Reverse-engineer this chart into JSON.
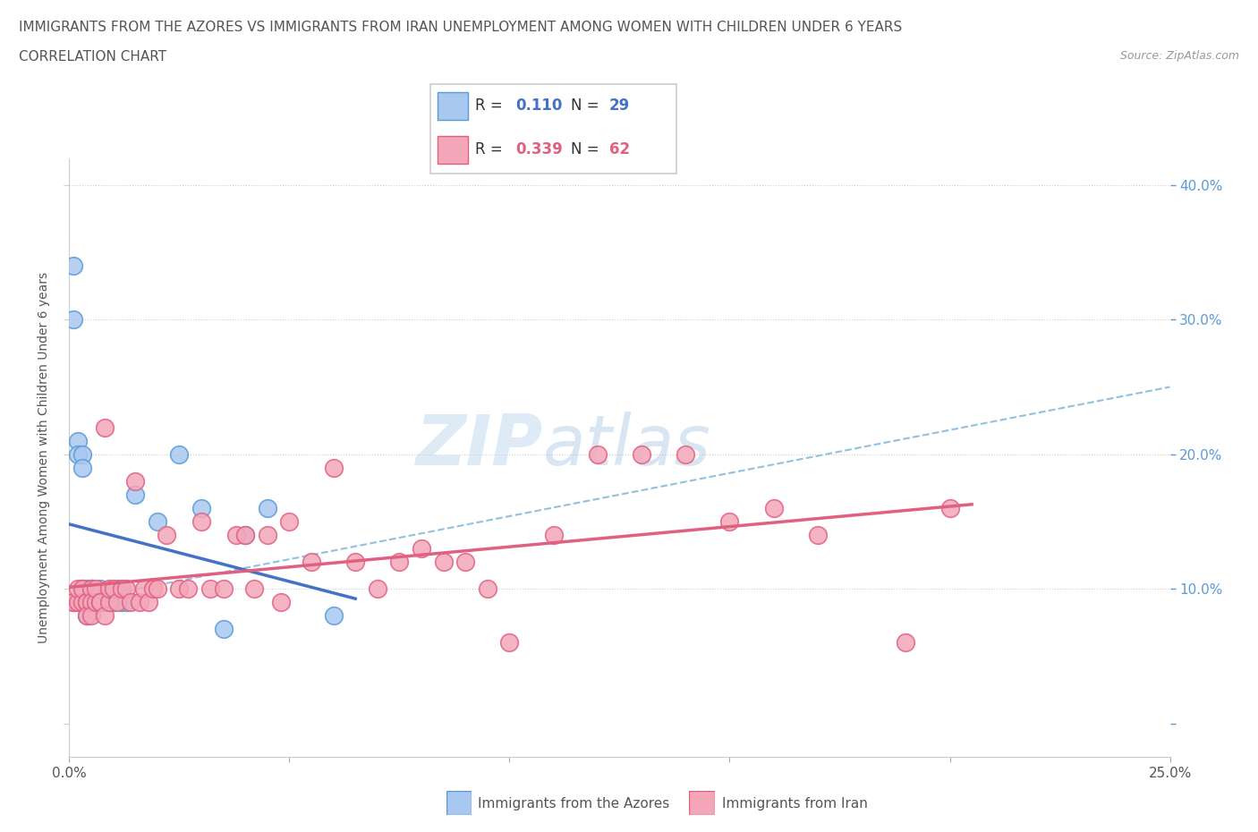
{
  "title_line1": "IMMIGRANTS FROM THE AZORES VS IMMIGRANTS FROM IRAN UNEMPLOYMENT AMONG WOMEN WITH CHILDREN UNDER 6 YEARS",
  "title_line2": "CORRELATION CHART",
  "source_text": "Source: ZipAtlas.com",
  "ylabel": "Unemployment Among Women with Children Under 6 years",
  "watermark_1": "ZIP",
  "watermark_2": "atlas",
  "xlim": [
    0.0,
    0.25
  ],
  "ylim": [
    -0.025,
    0.42
  ],
  "azores_color": "#a8c8f0",
  "azores_edge_color": "#5b9bd5",
  "iran_color": "#f4a7b9",
  "iran_edge_color": "#e06080",
  "azores_line_color": "#4472c4",
  "iran_line_color": "#e06080",
  "dash_line_color": "#92c0e0",
  "legend_R_azores": "0.110",
  "legend_N_azores": "29",
  "legend_R_iran": "0.339",
  "legend_N_iran": "62",
  "right_axis_color": "#5b9bd5",
  "azores_x": [
    0.001,
    0.001,
    0.002,
    0.002,
    0.003,
    0.003,
    0.003,
    0.004,
    0.004,
    0.005,
    0.005,
    0.006,
    0.006,
    0.007,
    0.007,
    0.008,
    0.009,
    0.01,
    0.011,
    0.012,
    0.013,
    0.015,
    0.02,
    0.025,
    0.03,
    0.035,
    0.04,
    0.045,
    0.06
  ],
  "azores_y": [
    0.34,
    0.3,
    0.21,
    0.2,
    0.2,
    0.19,
    0.1,
    0.1,
    0.08,
    0.1,
    0.09,
    0.09,
    0.09,
    0.1,
    0.09,
    0.09,
    0.09,
    0.09,
    0.1,
    0.09,
    0.09,
    0.17,
    0.15,
    0.2,
    0.16,
    0.07,
    0.14,
    0.16,
    0.08
  ],
  "iran_x": [
    0.001,
    0.001,
    0.002,
    0.002,
    0.003,
    0.003,
    0.004,
    0.004,
    0.004,
    0.005,
    0.005,
    0.005,
    0.006,
    0.006,
    0.007,
    0.007,
    0.008,
    0.008,
    0.009,
    0.009,
    0.01,
    0.011,
    0.012,
    0.013,
    0.014,
    0.015,
    0.016,
    0.017,
    0.018,
    0.019,
    0.02,
    0.022,
    0.025,
    0.027,
    0.03,
    0.032,
    0.035,
    0.038,
    0.04,
    0.042,
    0.045,
    0.048,
    0.05,
    0.055,
    0.06,
    0.065,
    0.07,
    0.075,
    0.08,
    0.085,
    0.09,
    0.095,
    0.1,
    0.11,
    0.12,
    0.13,
    0.14,
    0.15,
    0.16,
    0.17,
    0.19,
    0.2
  ],
  "iran_y": [
    0.09,
    0.09,
    0.09,
    0.1,
    0.09,
    0.1,
    0.09,
    0.09,
    0.08,
    0.1,
    0.09,
    0.08,
    0.09,
    0.1,
    0.09,
    0.09,
    0.08,
    0.22,
    0.09,
    0.1,
    0.1,
    0.09,
    0.1,
    0.1,
    0.09,
    0.18,
    0.09,
    0.1,
    0.09,
    0.1,
    0.1,
    0.14,
    0.1,
    0.1,
    0.15,
    0.1,
    0.1,
    0.14,
    0.14,
    0.1,
    0.14,
    0.09,
    0.15,
    0.12,
    0.19,
    0.12,
    0.1,
    0.12,
    0.13,
    0.12,
    0.12,
    0.1,
    0.06,
    0.14,
    0.2,
    0.2,
    0.2,
    0.15,
    0.16,
    0.14,
    0.06,
    0.16
  ]
}
